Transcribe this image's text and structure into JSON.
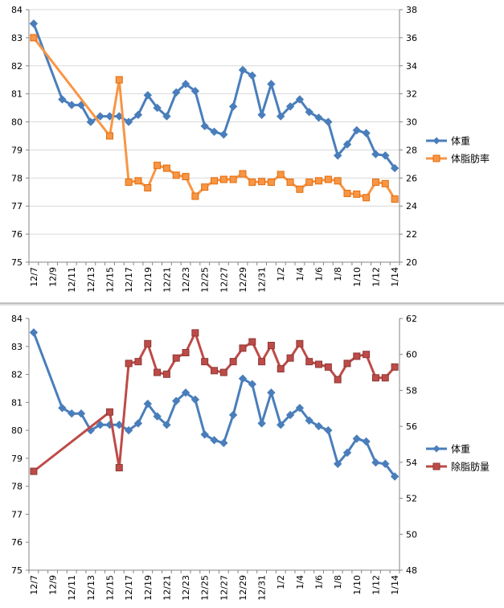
{
  "chart_data": [
    {
      "type": "line",
      "categories": [
        "12/7",
        "12/8",
        "12/9",
        "12/10",
        "12/11",
        "12/12",
        "12/13",
        "12/14",
        "12/15",
        "12/16",
        "12/17",
        "12/18",
        "12/19",
        "12/20",
        "12/21",
        "12/22",
        "12/23",
        "12/24",
        "12/25",
        "12/26",
        "12/27",
        "12/28",
        "12/29",
        "12/30",
        "12/31",
        "1/1",
        "1/2",
        "1/3",
        "1/4",
        "1/5",
        "1/6",
        "1/7",
        "1/8",
        "1/9",
        "1/10",
        "1/11",
        "1/12",
        "1/13",
        "1/14"
      ],
      "xtick_labels": [
        "12/7",
        "12/9",
        "12/11",
        "12/13",
        "12/15",
        "12/17",
        "12/19",
        "12/21",
        "12/23",
        "12/25",
        "12/27",
        "12/29",
        "12/31",
        "1/2",
        "1/4",
        "1/6",
        "1/8",
        "1/10",
        "1/12",
        "1/14"
      ],
      "y_left": {
        "min": 75,
        "max": 84,
        "step": 1,
        "ticks": [
          "75",
          "76",
          "77",
          "78",
          "79",
          "80",
          "81",
          "82",
          "83",
          "84"
        ]
      },
      "y_right": {
        "min": 20,
        "max": 38,
        "step": 2,
        "ticks": [
          "20",
          "22",
          "24",
          "26",
          "28",
          "30",
          "32",
          "34",
          "36",
          "38"
        ]
      },
      "grid": "horizontal",
      "legend_position": "right",
      "series": [
        {
          "name": "体重",
          "axis": "left",
          "color": "#4a7ebb",
          "marker": "diamond",
          "values": [
            83.5,
            null,
            null,
            80.8,
            80.6,
            80.6,
            80.0,
            80.2,
            80.2,
            80.2,
            80.0,
            80.25,
            80.95,
            80.5,
            80.2,
            81.05,
            81.35,
            81.1,
            79.85,
            79.65,
            79.55,
            80.55,
            81.85,
            81.65,
            80.25,
            81.35,
            80.2,
            80.55,
            80.8,
            80.35,
            80.15,
            80.0,
            78.8,
            79.2,
            79.7,
            79.6,
            78.85,
            78.8,
            78.35
          ]
        },
        {
          "name": "体脂肪率",
          "axis": "right",
          "color": "#f79646",
          "marker": "square",
          "values": [
            36.0,
            null,
            null,
            null,
            null,
            null,
            null,
            null,
            29.0,
            33.0,
            25.7,
            25.8,
            25.3,
            26.9,
            26.7,
            26.2,
            26.1,
            24.7,
            25.35,
            25.8,
            25.9,
            25.9,
            26.3,
            25.7,
            25.75,
            25.7,
            26.25,
            25.7,
            25.2,
            25.7,
            25.8,
            25.9,
            25.8,
            24.9,
            24.85,
            24.6,
            25.7,
            25.6,
            24.5
          ]
        }
      ]
    },
    {
      "type": "line",
      "categories": [
        "12/7",
        "12/8",
        "12/9",
        "12/10",
        "12/11",
        "12/12",
        "12/13",
        "12/14",
        "12/15",
        "12/16",
        "12/17",
        "12/18",
        "12/19",
        "12/20",
        "12/21",
        "12/22",
        "12/23",
        "12/24",
        "12/25",
        "12/26",
        "12/27",
        "12/28",
        "12/29",
        "12/30",
        "12/31",
        "1/1",
        "1/2",
        "1/3",
        "1/4",
        "1/5",
        "1/6",
        "1/7",
        "1/8",
        "1/9",
        "1/10",
        "1/11",
        "1/12",
        "1/13",
        "1/14"
      ],
      "xtick_labels": [
        "12/7",
        "12/9",
        "12/11",
        "12/13",
        "12/15",
        "12/17",
        "12/19",
        "12/21",
        "12/23",
        "12/25",
        "12/27",
        "12/29",
        "12/31",
        "1/2",
        "1/4",
        "1/6",
        "1/8",
        "1/10",
        "1/12",
        "1/14"
      ],
      "y_left": {
        "min": 75,
        "max": 84,
        "step": 1,
        "ticks": [
          "75",
          "76",
          "77",
          "78",
          "79",
          "80",
          "81",
          "82",
          "83",
          "84"
        ]
      },
      "y_right": {
        "min": 48,
        "max": 62,
        "step": 2,
        "ticks": [
          "48",
          "50",
          "52",
          "54",
          "56",
          "58",
          "60",
          "62"
        ]
      },
      "grid": "none",
      "legend_position": "right",
      "series": [
        {
          "name": "体重",
          "axis": "left",
          "color": "#4a7ebb",
          "marker": "diamond",
          "values": [
            83.5,
            null,
            null,
            80.8,
            80.6,
            80.6,
            80.0,
            80.2,
            80.2,
            80.2,
            80.0,
            80.25,
            80.95,
            80.5,
            80.2,
            81.05,
            81.35,
            81.1,
            79.85,
            79.65,
            79.55,
            80.55,
            81.85,
            81.65,
            80.25,
            81.35,
            80.2,
            80.55,
            80.8,
            80.35,
            80.15,
            80.0,
            78.8,
            79.2,
            79.7,
            79.6,
            78.85,
            78.8,
            78.35
          ]
        },
        {
          "name": "除脂肪量",
          "axis": "right",
          "color": "#be4b48",
          "marker": "square",
          "values": [
            53.5,
            null,
            null,
            null,
            null,
            null,
            null,
            null,
            56.8,
            53.7,
            59.5,
            59.6,
            60.6,
            59.0,
            58.9,
            59.8,
            60.1,
            61.2,
            59.6,
            59.1,
            59.0,
            59.6,
            60.35,
            60.7,
            59.6,
            60.5,
            59.2,
            59.8,
            60.6,
            59.6,
            59.45,
            59.3,
            58.6,
            59.5,
            59.9,
            60.0,
            58.7,
            58.7,
            59.3
          ]
        }
      ]
    }
  ]
}
